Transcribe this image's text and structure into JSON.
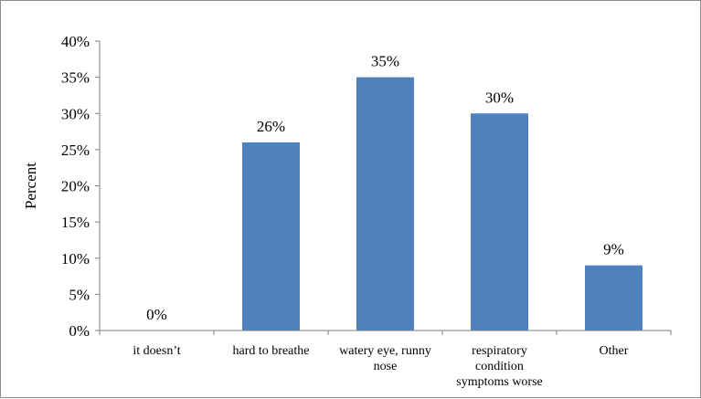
{
  "chart_data": {
    "type": "bar",
    "title": "",
    "xlabel": "",
    "ylabel": "Percent",
    "ylim": [
      0,
      40
    ],
    "y_ticks": [
      "0%",
      "5%",
      "10%",
      "15%",
      "20%",
      "25%",
      "30%",
      "35%",
      "40%"
    ],
    "y_tick_values": [
      0,
      5,
      10,
      15,
      20,
      25,
      30,
      35,
      40
    ],
    "categories": [
      [
        "it doesn’t"
      ],
      [
        "hard to breathe"
      ],
      [
        "watery eye, runny",
        "nose"
      ],
      [
        "respiratory",
        "condition",
        "symptoms worse"
      ],
      [
        "Other"
      ]
    ],
    "values": [
      0,
      26,
      35,
      30,
      9
    ],
    "data_labels": [
      "0%",
      "26%",
      "35%",
      "30%",
      "9%"
    ],
    "grid": false,
    "legend": "none",
    "bar_color": "#4f81bd"
  }
}
